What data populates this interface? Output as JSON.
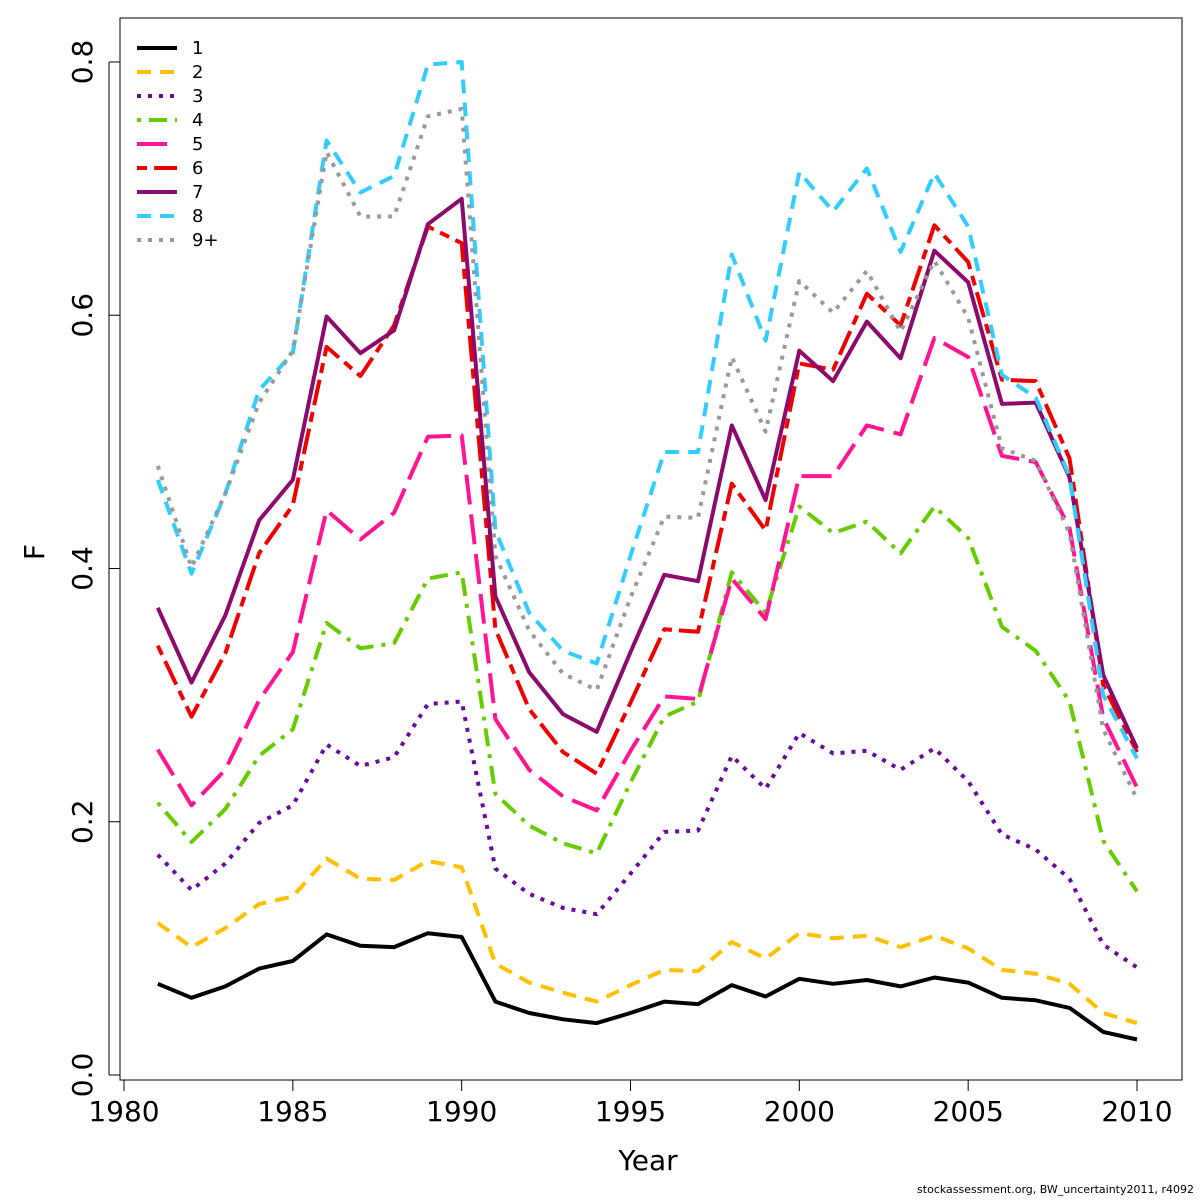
{
  "chart_data": {
    "type": "line",
    "xlabel": "Year",
    "ylabel": "F",
    "xlim": [
      1980,
      2010
    ],
    "ylim": [
      0,
      0.8
    ],
    "x_ticks": [
      "1980",
      "1985",
      "1990",
      "1995",
      "2000",
      "2005",
      "2010"
    ],
    "y_ticks": [
      "0.0",
      "0.2",
      "0.4",
      "0.6",
      "0.8"
    ],
    "legend_position": "top-left",
    "grid": false,
    "x": [
      1981,
      1982,
      1983,
      1984,
      1985,
      1986,
      1987,
      1988,
      1989,
      1990,
      1991,
      1992,
      1993,
      1994,
      1995,
      1996,
      1997,
      1998,
      1999,
      2000,
      2001,
      2002,
      2003,
      2004,
      2005,
      2006,
      2007,
      2008,
      2009,
      2010
    ],
    "series": [
      {
        "name": "1",
        "color": "#000000",
        "dash": "solid",
        "values": [
          0.072,
          0.061,
          0.07,
          0.084,
          0.09,
          0.111,
          0.102,
          0.101,
          0.112,
          0.109,
          0.058,
          0.049,
          0.044,
          0.041,
          0.049,
          0.058,
          0.056,
          0.071,
          0.062,
          0.076,
          0.072,
          0.075,
          0.07,
          0.077,
          0.073,
          0.061,
          0.059,
          0.053,
          0.034,
          0.028
        ]
      },
      {
        "name": "2",
        "color": "#ffc000",
        "dash": "dashed",
        "values": [
          0.12,
          0.101,
          0.116,
          0.135,
          0.141,
          0.171,
          0.155,
          0.154,
          0.169,
          0.164,
          0.088,
          0.073,
          0.065,
          0.058,
          0.071,
          0.083,
          0.082,
          0.105,
          0.092,
          0.112,
          0.108,
          0.11,
          0.101,
          0.11,
          0.1,
          0.083,
          0.08,
          0.072,
          0.049,
          0.041
        ]
      },
      {
        "name": "3",
        "color": "#6a0a9a",
        "dash": "dotted",
        "values": [
          0.174,
          0.146,
          0.167,
          0.199,
          0.213,
          0.261,
          0.244,
          0.251,
          0.293,
          0.295,
          0.163,
          0.143,
          0.132,
          0.127,
          0.159,
          0.192,
          0.193,
          0.252,
          0.226,
          0.27,
          0.254,
          0.256,
          0.241,
          0.258,
          0.232,
          0.19,
          0.178,
          0.155,
          0.103,
          0.085
        ]
      },
      {
        "name": "4",
        "color": "#66cc00",
        "dash": "dotdash",
        "values": [
          0.215,
          0.184,
          0.21,
          0.252,
          0.273,
          0.357,
          0.337,
          0.341,
          0.392,
          0.397,
          0.222,
          0.197,
          0.183,
          0.175,
          0.231,
          0.283,
          0.295,
          0.397,
          0.365,
          0.449,
          0.428,
          0.437,
          0.412,
          0.449,
          0.424,
          0.354,
          0.335,
          0.295,
          0.185,
          0.145
        ]
      },
      {
        "name": "5",
        "color": "#ff1493",
        "dash": "longdash",
        "values": [
          0.257,
          0.213,
          0.241,
          0.296,
          0.334,
          0.446,
          0.423,
          0.444,
          0.504,
          0.505,
          0.281,
          0.241,
          0.22,
          0.209,
          0.256,
          0.299,
          0.297,
          0.392,
          0.36,
          0.473,
          0.473,
          0.513,
          0.506,
          0.582,
          0.567,
          0.489,
          0.484,
          0.432,
          0.282,
          0.227
        ]
      },
      {
        "name": "6",
        "color": "#ee0000",
        "dash": "twodash",
        "values": [
          0.339,
          0.283,
          0.333,
          0.412,
          0.45,
          0.575,
          0.552,
          0.592,
          0.67,
          0.657,
          0.352,
          0.289,
          0.255,
          0.238,
          0.294,
          0.352,
          0.35,
          0.467,
          0.43,
          0.562,
          0.557,
          0.617,
          0.592,
          0.671,
          0.642,
          0.549,
          0.548,
          0.487,
          0.308,
          0.255
        ]
      },
      {
        "name": "7",
        "color": "#8b0a6b",
        "dash": "solid",
        "values": [
          0.369,
          0.31,
          0.363,
          0.438,
          0.47,
          0.599,
          0.57,
          0.588,
          0.672,
          0.692,
          0.378,
          0.318,
          0.285,
          0.271,
          0.334,
          0.395,
          0.39,
          0.513,
          0.454,
          0.572,
          0.548,
          0.595,
          0.566,
          0.651,
          0.626,
          0.53,
          0.531,
          0.472,
          0.316,
          0.258
        ]
      },
      {
        "name": "8",
        "color": "#33ccff",
        "dash": "dashed",
        "values": [
          0.47,
          0.396,
          0.459,
          0.541,
          0.57,
          0.738,
          0.697,
          0.71,
          0.798,
          0.8,
          0.43,
          0.365,
          0.335,
          0.325,
          0.41,
          0.492,
          0.492,
          0.648,
          0.58,
          0.713,
          0.682,
          0.716,
          0.65,
          0.712,
          0.67,
          0.553,
          0.535,
          0.473,
          0.3,
          0.25
        ]
      },
      {
        "name": "9+",
        "color": "#999999",
        "dash": "dotted",
        "values": [
          0.481,
          0.401,
          0.459,
          0.531,
          0.572,
          0.729,
          0.678,
          0.678,
          0.757,
          0.763,
          0.41,
          0.351,
          0.317,
          0.304,
          0.377,
          0.441,
          0.44,
          0.567,
          0.508,
          0.627,
          0.602,
          0.635,
          0.587,
          0.643,
          0.598,
          0.495,
          0.485,
          0.428,
          0.273,
          0.218
        ]
      }
    ]
  },
  "footer": "stockassessment.org, BW_uncertainty2011, r4092"
}
